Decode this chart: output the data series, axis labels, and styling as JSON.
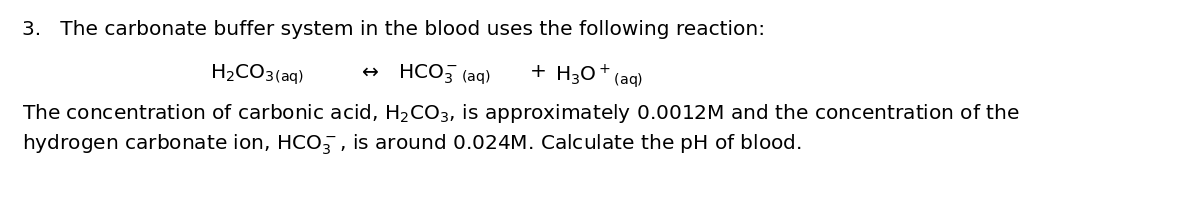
{
  "background_color": "#ffffff",
  "text_color": "#000000",
  "line1_fontsize": 14.5,
  "body_fontsize": 14.5,
  "reaction_fontsize": 14.5
}
